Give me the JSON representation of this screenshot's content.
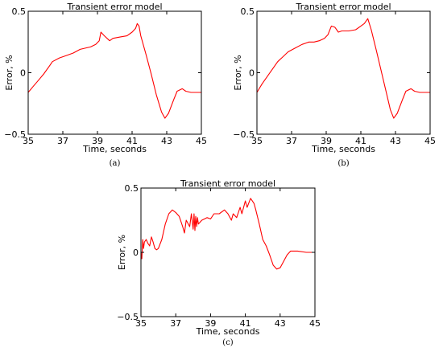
{
  "chart_data": [
    {
      "type": "line",
      "title": "Transient error model",
      "caption": "(a)",
      "xlabel": "Time, seconds",
      "ylabel": "Error, %",
      "xlim": [
        35,
        45
      ],
      "ylim": [
        -0.5,
        0.5
      ],
      "xticks": [
        35,
        37,
        39,
        41,
        43,
        45
      ],
      "yticks": [
        -0.5,
        0,
        0.5
      ],
      "grid": false,
      "color": "#ff0000",
      "series": [
        {
          "x": [
            35,
            35.3,
            35.6,
            35.9,
            36.2,
            36.4,
            36.8,
            37.2,
            37.6,
            38,
            38.3,
            38.6,
            38.9,
            39.1,
            39.2,
            39.4,
            39.7,
            39.9,
            40.3,
            40.7,
            41,
            41.2,
            41.3,
            41.4,
            41.5,
            41.8,
            42.1,
            42.4,
            42.7,
            42.9,
            43.1,
            43.4,
            43.6,
            43.9,
            44.1,
            44.4,
            44.7,
            45
          ],
          "y": [
            -0.16,
            -0.11,
            -0.06,
            -0.01,
            0.05,
            0.09,
            0.12,
            0.14,
            0.16,
            0.19,
            0.2,
            0.21,
            0.23,
            0.26,
            0.33,
            0.3,
            0.26,
            0.28,
            0.29,
            0.3,
            0.33,
            0.36,
            0.4,
            0.38,
            0.3,
            0.15,
            -0.01,
            -0.18,
            -0.32,
            -0.37,
            -0.33,
            -0.22,
            -0.15,
            -0.13,
            -0.15,
            -0.16,
            -0.16,
            -0.16
          ]
        }
      ]
    },
    {
      "type": "line",
      "title": "Transient error model",
      "caption": "(b)",
      "xlabel": "Time, seconds",
      "ylabel": "Error, %",
      "xlim": [
        35,
        45
      ],
      "ylim": [
        -0.5,
        0.5
      ],
      "xticks": [
        35,
        37,
        39,
        41,
        43,
        45
      ],
      "yticks": [
        -0.5,
        0,
        0.5
      ],
      "grid": false,
      "color": "#ff0000",
      "series": [
        {
          "x": [
            35,
            35.3,
            35.6,
            35.9,
            36.2,
            36.5,
            36.8,
            37.2,
            37.6,
            38,
            38.3,
            38.6,
            38.9,
            39.1,
            39.3,
            39.5,
            39.7,
            39.9,
            40.3,
            40.7,
            41,
            41.2,
            41.4,
            41.6,
            41.9,
            42.2,
            42.5,
            42.7,
            42.9,
            43.1,
            43.4,
            43.6,
            43.9,
            44.1,
            44.4,
            44.7,
            45
          ],
          "y": [
            -0.16,
            -0.09,
            -0.03,
            0.03,
            0.09,
            0.13,
            0.17,
            0.2,
            0.23,
            0.25,
            0.25,
            0.26,
            0.28,
            0.31,
            0.38,
            0.37,
            0.33,
            0.34,
            0.34,
            0.35,
            0.38,
            0.4,
            0.44,
            0.35,
            0.18,
            0.0,
            -0.18,
            -0.3,
            -0.37,
            -0.33,
            -0.22,
            -0.15,
            -0.13,
            -0.15,
            -0.16,
            -0.16,
            -0.16
          ]
        }
      ]
    },
    {
      "type": "line",
      "title": "Transient error model",
      "caption": "(c)",
      "xlabel": "Time, seconds",
      "ylabel": "Error, %",
      "xlim": [
        35,
        45
      ],
      "ylim": [
        -0.5,
        0.5
      ],
      "xticks": [
        35,
        37,
        39,
        41,
        43,
        45
      ],
      "yticks": [
        -0.5,
        0,
        0.5
      ],
      "grid": false,
      "color": "#ff0000",
      "series": [
        {
          "x": [
            35,
            35.05,
            35.1,
            35.15,
            35.2,
            35.3,
            35.4,
            35.5,
            35.6,
            35.7,
            35.8,
            35.9,
            36,
            36.2,
            36.4,
            36.6,
            36.8,
            37,
            37.2,
            37.4,
            37.5,
            37.6,
            37.8,
            37.9,
            38,
            38.05,
            38.1,
            38.15,
            38.2,
            38.25,
            38.3,
            38.5,
            38.8,
            39,
            39.2,
            39.5,
            39.8,
            40,
            40.2,
            40.3,
            40.5,
            40.7,
            40.8,
            41,
            41.1,
            41.3,
            41.5,
            41.6,
            41.8,
            42,
            42.2,
            42.4,
            42.6,
            42.8,
            43,
            43.2,
            43.4,
            43.6,
            43.8,
            44,
            44.5,
            45
          ],
          "y": [
            0.0,
            -0.05,
            0.1,
            0.03,
            0.08,
            0.1,
            0.07,
            0.05,
            0.12,
            0.08,
            0.03,
            0.02,
            0.03,
            0.1,
            0.22,
            0.3,
            0.33,
            0.31,
            0.28,
            0.2,
            0.15,
            0.25,
            0.2,
            0.3,
            0.18,
            0.3,
            0.17,
            0.28,
            0.2,
            0.27,
            0.22,
            0.25,
            0.27,
            0.26,
            0.3,
            0.3,
            0.33,
            0.3,
            0.25,
            0.3,
            0.27,
            0.35,
            0.3,
            0.4,
            0.35,
            0.42,
            0.38,
            0.33,
            0.22,
            0.1,
            0.05,
            -0.02,
            -0.1,
            -0.13,
            -0.12,
            -0.07,
            -0.02,
            0.01,
            0.01,
            0.01,
            0.0,
            0.0
          ]
        }
      ]
    }
  ]
}
